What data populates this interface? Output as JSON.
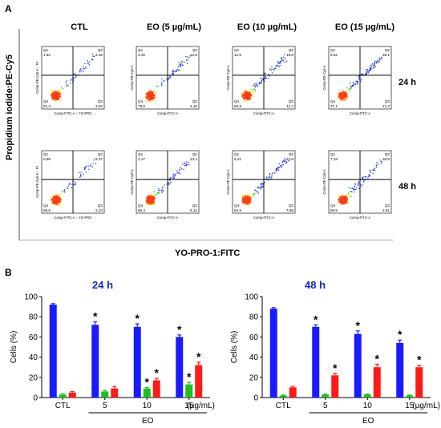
{
  "panel_a": {
    "label": "A",
    "y_axis_title": "Propidium iodide:PE-Cy5",
    "x_axis_title": "YO-PRO-1:FITC",
    "columns": [
      "CTL",
      "EO (5 µg/mL)",
      "EO (10 µg/mL)",
      "EO (15 µg/mL)"
    ],
    "rows": [
      "24 h",
      "48 h"
    ],
    "plot_ylabel_ctl": "Comp-PE-Cy5-A :: PI",
    "plot_xlabel_ctl": "Comp-FITC-A :: YO-PRO",
    "plot_ylabel": "Comp-PE-Cy5-A",
    "plot_xlabel": "Comp-FITC-A",
    "quadrant_names": [
      "Q1",
      "Q2",
      "Q3",
      "Q4"
    ],
    "plots": [
      {
        "row": "24 h",
        "col": "CTL",
        "q1": "1,82",
        "q2": "3,19",
        "q3": "3,82",
        "q4": "91,3"
      },
      {
        "row": "24 h",
        "col": "EO (5 µg/mL)",
        "q1": "3,45",
        "q2": "12,8",
        "q3": "4,16",
        "q4": "79,6"
      },
      {
        "row": "24 h",
        "col": "EO (10 µg/mL)",
        "q1": "12,6",
        "q2": "18,8",
        "q3": "11,7",
        "q4": "56,9"
      },
      {
        "row": "24 h",
        "col": "EO (15 µg/mL)",
        "q1": "5,02",
        "q2": "36,1",
        "q3": "21,7",
        "q4": "37,1"
      },
      {
        "row": "48 h",
        "col": "CTL",
        "q1": "0,89",
        "q2": "8,37",
        "q3": "2,23",
        "q4": "88,5"
      },
      {
        "row": "48 h",
        "col": "EO (5 µg/mL)",
        "q1": "3,17",
        "q2": "24,4",
        "q3": "5,12",
        "q4": "68,4"
      },
      {
        "row": "48 h",
        "col": "EO (10 µg/mL)",
        "q1": "5,21",
        "q2": "22,8",
        "q3": "7,58",
        "q4": "64,9"
      },
      {
        "row": "48 h",
        "col": "EO (15 µg/mL)",
        "q1": "7,18",
        "q2": "30,5",
        "q3": "2,81",
        "q4": "59,5"
      }
    ]
  },
  "panel_b": {
    "label": "B"
  },
  "colors": {
    "blue": "#1a1aff",
    "green": "#1fbf1f",
    "red": "#ff1a1a",
    "title_blue": "#1428c8"
  },
  "chart_data": [
    {
      "type": "bar",
      "title": "24 h",
      "ylabel": "Cells (%)",
      "ylim": [
        0,
        100
      ],
      "yticks": [
        "0",
        "20",
        "40",
        "60",
        "80",
        "100"
      ],
      "categories": [
        "CTL",
        "5",
        "10",
        "15"
      ],
      "x_unit": "(µg/mL)",
      "group_label": "EO",
      "series": [
        {
          "values": [
            92,
            72,
            70,
            60
          ],
          "errors": [
            1,
            3,
            3,
            2
          ],
          "significant": [
            false,
            true,
            true,
            true
          ]
        },
        {
          "values": [
            3,
            6,
            9,
            13
          ],
          "errors": [
            1,
            1,
            1,
            2
          ],
          "significant": [
            false,
            false,
            true,
            true
          ]
        },
        {
          "values": [
            5,
            9,
            17,
            32
          ],
          "errors": [
            1,
            2,
            2,
            3
          ],
          "significant": [
            false,
            false,
            true,
            true
          ]
        }
      ]
    },
    {
      "type": "bar",
      "title": "48 h",
      "ylabel": "Cells (%)",
      "ylim": [
        0,
        100
      ],
      "yticks": [
        "0",
        "20",
        "40",
        "60",
        "80",
        "100"
      ],
      "categories": [
        "CTL",
        "5",
        "10",
        "15"
      ],
      "x_unit": "(µg/mL)",
      "group_label": "EO",
      "series": [
        {
          "values": [
            88,
            70,
            63,
            54
          ],
          "errors": [
            1,
            2,
            3,
            3
          ],
          "significant": [
            false,
            true,
            true,
            true
          ]
        },
        {
          "values": [
            2,
            3,
            3,
            2
          ],
          "errors": [
            0.5,
            0.5,
            0.5,
            0.5
          ],
          "significant": [
            false,
            false,
            false,
            false
          ]
        },
        {
          "values": [
            10,
            22,
            30,
            30
          ],
          "errors": [
            1,
            2,
            3,
            2
          ],
          "significant": [
            false,
            true,
            true,
            true
          ]
        }
      ]
    }
  ]
}
